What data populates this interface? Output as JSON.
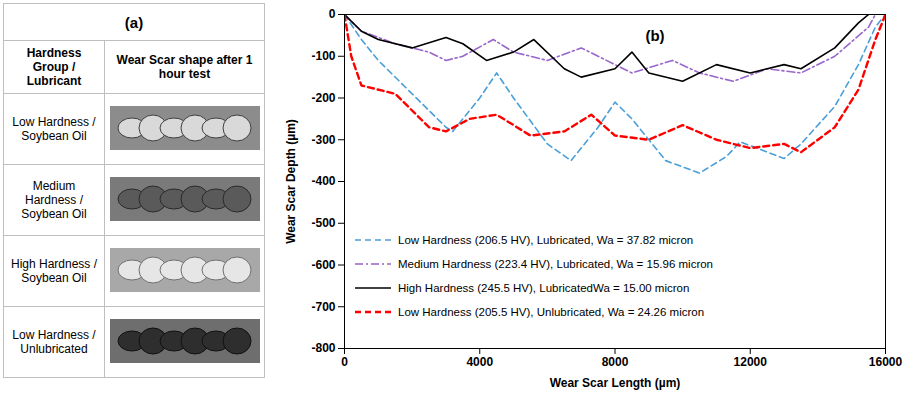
{
  "panel_a": {
    "label": "(a)",
    "columns": [
      "Hardness Group / Lubricant",
      "Wear Scar shape after 1 hour test"
    ],
    "rows": [
      "Low Hardness / Soybean Oil",
      "Medium Hardness / Soybean Oil",
      "High Hardness / Soybean Oil",
      "Low Hardness / Unlubricated"
    ]
  },
  "chart_data": {
    "type": "line",
    "annotation": "(b)",
    "x_label": "Wear Scar Length (µm)",
    "y_label": "Wear Scar Depth (µm)",
    "xlim": [
      0,
      16000
    ],
    "xticks": [
      0,
      4000,
      8000,
      12000,
      16000
    ],
    "ylim": [
      -800,
      0
    ],
    "yticks": [
      -800,
      -700,
      -600,
      -500,
      -400,
      -300,
      -200,
      -100,
      0
    ],
    "grid": false,
    "legend": "lower left",
    "series": [
      {
        "name": "Low Hardness (206.5 HV), Lubricated, Wa = 37.82 micron",
        "color": "#4a9fd8",
        "line_style": "dashed",
        "x": [
          0,
          500,
          1000,
          2000,
          3000,
          3200,
          4000,
          4500,
          5000,
          6000,
          6700,
          7500,
          8000,
          8500,
          9500,
          10500,
          11300,
          11700,
          12200,
          13000,
          13500,
          14500,
          15200,
          15700,
          16000
        ],
        "values": [
          0,
          -60,
          -110,
          -190,
          -270,
          -280,
          -200,
          -140,
          -200,
          -310,
          -350,
          -270,
          -210,
          -250,
          -350,
          -380,
          -340,
          -305,
          -320,
          -345,
          -310,
          -220,
          -120,
          -30,
          0
        ]
      },
      {
        "name": "Medium Hardness (223.4 HV), Lubricated, Wa = 15.96 micron",
        "color": "#9966cc",
        "line_style": "dashdot",
        "x": [
          0,
          500,
          1500,
          2500,
          3000,
          3500,
          4400,
          5000,
          6000,
          7000,
          7500,
          8500,
          9700,
          10500,
          11500,
          12500,
          13500,
          14500,
          15500,
          15700
        ],
        "values": [
          0,
          -40,
          -70,
          -90,
          -110,
          -100,
          -60,
          -90,
          -110,
          -80,
          -100,
          -140,
          -110,
          -140,
          -160,
          -130,
          -140,
          -100,
          -30,
          0
        ]
      },
      {
        "name": "High Hardness (245.5 HV), LubricatedWa = 15.00 micron",
        "color": "#000000",
        "line_style": "solid",
        "x": [
          0,
          500,
          1000,
          2000,
          3000,
          3500,
          4200,
          5000,
          5600,
          6500,
          7000,
          8000,
          8500,
          9000,
          10000,
          11000,
          12000,
          13000,
          13500,
          14500,
          15200,
          15500
        ],
        "values": [
          0,
          -40,
          -60,
          -80,
          -55,
          -70,
          -110,
          -90,
          -60,
          -130,
          -150,
          -130,
          -90,
          -140,
          -160,
          -120,
          -140,
          -120,
          -130,
          -80,
          -20,
          0
        ]
      },
      {
        "name": "Low Hardness (205.5 HV), Unlubricated, Wa = 24.26 micron",
        "color": "#ff0000",
        "line_style": "dashed",
        "x": [
          0,
          200,
          500,
          1500,
          2500,
          3000,
          3700,
          4500,
          5500,
          6500,
          7300,
          8000,
          9000,
          10000,
          11000,
          12000,
          13000,
          13500,
          14500,
          15200,
          15700,
          16000
        ],
        "values": [
          0,
          -100,
          -170,
          -190,
          -270,
          -280,
          -250,
          -240,
          -290,
          -280,
          -240,
          -290,
          -300,
          -265,
          -300,
          -320,
          -310,
          -330,
          -270,
          -180,
          -60,
          0
        ]
      }
    ]
  }
}
